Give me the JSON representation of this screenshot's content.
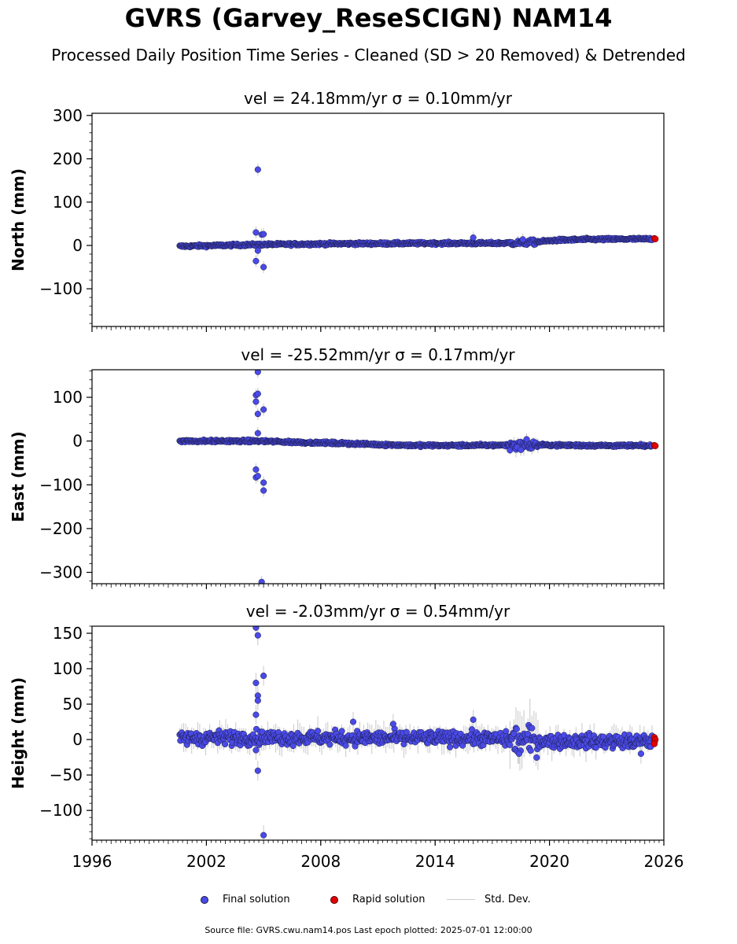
{
  "title": "GVRS (Garvey_ReseSCIGN) NAM14",
  "subtitle": "Processed Daily Position Time Series - Cleaned (SD > 20 Removed) & Detrended",
  "footer": "Source file: GVRS.cwu.nam14.pos  Last epoch plotted: 2025-07-01 12:00:00",
  "legend": {
    "final": "Final solution",
    "rapid": "Rapid solution",
    "std": "Std. Dev."
  },
  "colors": {
    "final": "#4a4ae8",
    "rapid": "#e00000",
    "std": "#c8c8c8",
    "edge": "#1a1a40"
  },
  "chart_data": [
    {
      "type": "scatter",
      "title": "vel = 24.18mm/yr   σ = 0.10mm/yr",
      "ylabel": "North (mm)",
      "xlim": [
        1996,
        2026
      ],
      "ylim": [
        -187,
        305
      ],
      "yticks": [
        300,
        200,
        100,
        0,
        -100
      ],
      "xticks": [
        1996,
        2002,
        2008,
        2014,
        2020,
        2026
      ],
      "trend": [
        [
          2000.6,
          -2
        ],
        [
          2004.7,
          2
        ],
        [
          2009,
          4
        ],
        [
          2014,
          5
        ],
        [
          2017,
          5
        ],
        [
          2018.5,
          6
        ],
        [
          2019.3,
          8
        ],
        [
          2020.3,
          12
        ],
        [
          2022,
          14
        ],
        [
          2025.4,
          15
        ]
      ],
      "scatter": 2.0,
      "outliers": [
        [
          2004.7,
          175
        ],
        [
          2004.6,
          30
        ],
        [
          2004.9,
          25
        ],
        [
          2005.0,
          26
        ],
        [
          2004.7,
          -12
        ],
        [
          2004.6,
          -36
        ],
        [
          2005.0,
          -50
        ],
        [
          2016.0,
          18
        ],
        [
          2018.6,
          14
        ]
      ],
      "rapid": [
        [
          2025.5,
          16
        ],
        [
          2025.55,
          15
        ]
      ]
    },
    {
      "type": "scatter",
      "title": "vel = -25.52mm/yr   σ = 0.17mm/yr",
      "ylabel": "East (mm)",
      "xlim": [
        1996,
        2026
      ],
      "ylim": [
        -326,
        163
      ],
      "yticks": [
        100,
        0,
        -100,
        -200,
        -300
      ],
      "xticks": [
        1996,
        2002,
        2008,
        2014,
        2020,
        2026
      ],
      "trend": [
        [
          2000.6,
          0
        ],
        [
          2004.7,
          0
        ],
        [
          2007,
          -3
        ],
        [
          2009,
          -5
        ],
        [
          2011,
          -8
        ],
        [
          2013,
          -10
        ],
        [
          2016,
          -10
        ],
        [
          2018,
          -9
        ],
        [
          2019.4,
          -9
        ],
        [
          2022,
          -10
        ],
        [
          2025.4,
          -11
        ]
      ],
      "scatter": 2.0,
      "outliers": [
        [
          2004.7,
          158
        ],
        [
          2004.6,
          105
        ],
        [
          2004.7,
          108
        ],
        [
          2004.6,
          90
        ],
        [
          2005.0,
          72
        ],
        [
          2004.7,
          62
        ],
        [
          2004.7,
          18
        ],
        [
          2004.6,
          -65
        ],
        [
          2004.6,
          -83
        ],
        [
          2004.7,
          -80
        ],
        [
          2005.0,
          -95
        ],
        [
          2005.0,
          -113
        ],
        [
          2004.9,
          -322
        ],
        [
          2018.3,
          -14
        ],
        [
          2018.8,
          4
        ],
        [
          2018.5,
          -20
        ]
      ],
      "rapid": [
        [
          2025.5,
          -10
        ],
        [
          2025.55,
          -11
        ]
      ]
    },
    {
      "type": "scatter",
      "title": "vel = -2.03mm/yr   σ = 0.54mm/yr",
      "ylabel": "Height (mm)",
      "xlim": [
        1996,
        2026
      ],
      "ylim": [
        -142,
        160
      ],
      "yticks": [
        150,
        100,
        50,
        0,
        -50,
        -100
      ],
      "xticks": [
        1996,
        2002,
        2008,
        2014,
        2020,
        2026
      ],
      "trend": [
        [
          2000.6,
          2
        ],
        [
          2004.7,
          3
        ],
        [
          2010,
          2
        ],
        [
          2016,
          2
        ],
        [
          2020,
          -2
        ],
        [
          2025.4,
          -3
        ]
      ],
      "scatter": 7.0,
      "outliers": [
        [
          2004.6,
          158
        ],
        [
          2004.7,
          147
        ],
        [
          2005.0,
          90
        ],
        [
          2004.6,
          80
        ],
        [
          2004.7,
          62
        ],
        [
          2004.7,
          55
        ],
        [
          2004.6,
          35
        ],
        [
          2004.6,
          -15
        ],
        [
          2004.7,
          -44
        ],
        [
          2005.0,
          -135
        ],
        [
          2016.0,
          28
        ],
        [
          2011.8,
          22
        ],
        [
          2009.7,
          25
        ],
        [
          2018.4,
          -20
        ],
        [
          2024.8,
          -20
        ]
      ],
      "rapid": [
        [
          2025.5,
          3
        ],
        [
          2025.52,
          -2
        ],
        [
          2025.55,
          0
        ],
        [
          2025.5,
          -6
        ]
      ]
    }
  ]
}
